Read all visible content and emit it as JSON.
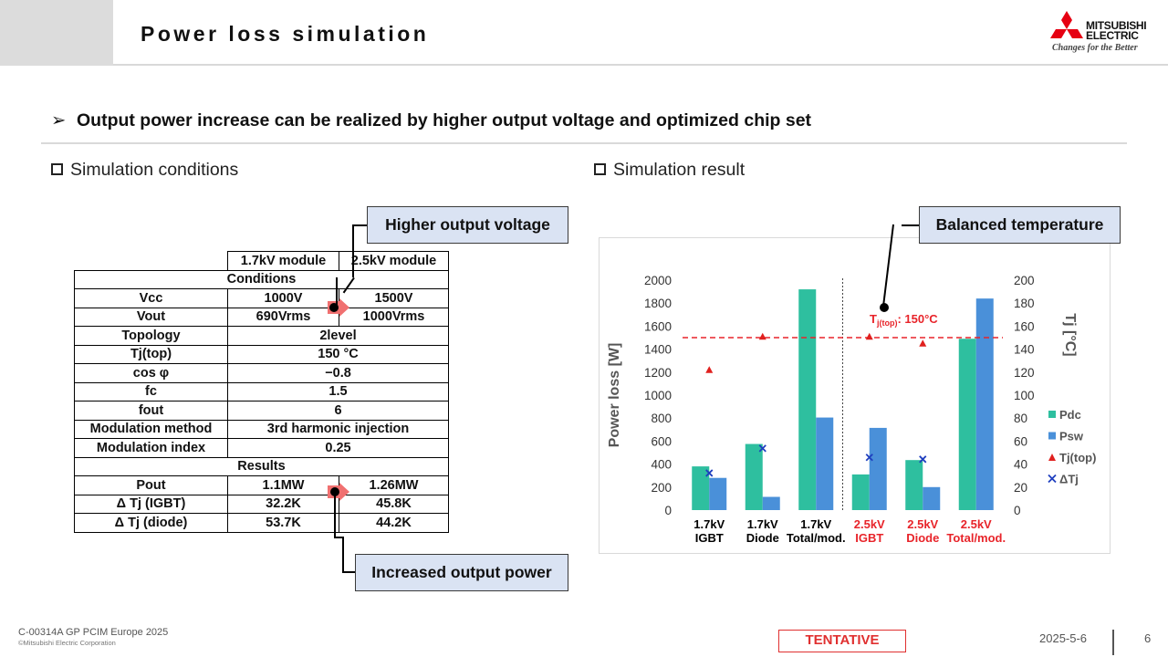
{
  "header": {
    "title": "Power loss simulation",
    "logo_line1": "MITSUBISHI",
    "logo_line2": "ELECTRIC",
    "logo_tagline": "Changes for the Better"
  },
  "main_bullet": "Output power increase can be realized by higher output voltage and optimized chip set",
  "left_section": {
    "heading": "Simulation conditions",
    "table": {
      "col_headers": [
        "1.7kV module",
        "2.5kV module"
      ],
      "conditions_header": "Conditions",
      "results_header": "Results",
      "rows": [
        {
          "label": "Vcc",
          "v1": "1000V",
          "v2": "1500V"
        },
        {
          "label": "Vout",
          "v1": "690Vrms",
          "v2": "1000Vrms"
        },
        {
          "label": "Topology",
          "merged": "2level"
        },
        {
          "label": "Tj(top)",
          "merged": "150 °C"
        },
        {
          "label": "cos φ",
          "merged": "−0.8"
        },
        {
          "label": "fc",
          "merged": "1.5"
        },
        {
          "label": "fout",
          "merged": "6"
        },
        {
          "label": "Modulation method",
          "merged": "3rd harmonic injection"
        },
        {
          "label": "Modulation index",
          "merged": "0.25"
        }
      ],
      "result_rows": [
        {
          "label": "Pout",
          "v1": "1.1MW",
          "v2": "1.26MW"
        },
        {
          "label": "Δ Tj (IGBT)",
          "v1": "32.2K",
          "v2": "45.8K"
        },
        {
          "label": "Δ Tj (diode)",
          "v1": "53.7K",
          "v2": "44.2K"
        }
      ]
    },
    "callout_top": "Higher output voltage",
    "callout_bottom": "Increased output power"
  },
  "right_section": {
    "heading": "Simulation result",
    "callout": "Balanced temperature"
  },
  "chart_data": {
    "type": "bar",
    "title": "",
    "categories": [
      {
        "line1": "1.7kV",
        "line2": "IGBT",
        "color": "#000000"
      },
      {
        "line1": "1.7kV",
        "line2": "Diode",
        "color": "#000000"
      },
      {
        "line1": "1.7kV",
        "line2": "Total/mod.",
        "color": "#000000"
      },
      {
        "line1": "2.5kV",
        "line2": "IGBT",
        "color": "#e8242a"
      },
      {
        "line1": "2.5kV",
        "line2": "Diode",
        "color": "#e8242a"
      },
      {
        "line1": "2.5kV",
        "line2": "Total/mod.",
        "color": "#e8242a"
      }
    ],
    "series": [
      {
        "name": "Pdc",
        "axis": "left",
        "kind": "bar",
        "color": "#2ebf9f",
        "values": [
          380,
          575,
          1920,
          310,
          435,
          1490
        ]
      },
      {
        "name": "Psw",
        "axis": "left",
        "kind": "bar",
        "color": "#4a90d9",
        "values": [
          280,
          115,
          805,
          715,
          200,
          1840
        ]
      },
      {
        "name": "Tj(top)",
        "axis": "right",
        "kind": "marker-triangle",
        "color": "#e0201e",
        "values": [
          122,
          151,
          null,
          151,
          145,
          null
        ]
      },
      {
        "name": "ΔTj",
        "axis": "right",
        "kind": "marker-x",
        "color": "#1f3fbf",
        "values": [
          32.2,
          53.7,
          null,
          45.8,
          44.2,
          null
        ]
      }
    ],
    "ylabel": "Power loss [W]",
    "y2label": "Tj [°C]",
    "ylim": [
      0,
      2000
    ],
    "y2lim": [
      0,
      200
    ],
    "yticks": [
      0,
      200,
      400,
      600,
      800,
      1000,
      1200,
      1400,
      1600,
      1800,
      2000
    ],
    "y2ticks": [
      0,
      20,
      40,
      60,
      80,
      100,
      120,
      140,
      160,
      180,
      200
    ],
    "reference_line": {
      "value": 150,
      "axis": "right",
      "label_main": "T",
      "label_sub": "j(top)",
      "label_rest": ": 150°C",
      "color": "#e8242a"
    },
    "divider_after_category": 2,
    "legend_position": "right",
    "grid": false
  },
  "footer": {
    "code": "C-00314A GP PCIM Europe 2025",
    "copyright": "©Mitsubishi Electric Corporation",
    "tentative": "TENTATIVE",
    "date": "2025-5-6",
    "page": "6"
  }
}
